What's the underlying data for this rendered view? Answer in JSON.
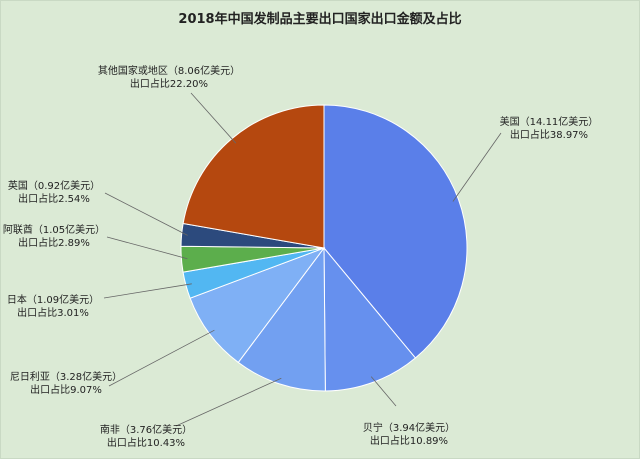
{
  "chart_data": {
    "type": "pie",
    "title": "2018年中国发制品主要出口国家出口金额及占比",
    "slices": [
      {
        "key": "us",
        "name": "美国",
        "value": 14.11,
        "percent": 38.97,
        "color": "#5a7fe9",
        "label_line1": "美国（14.11亿美元）",
        "label_line2": "出口占比38.97%"
      },
      {
        "key": "benin",
        "name": "贝宁",
        "value": 3.94,
        "percent": 10.89,
        "color": "#6690ee",
        "label_line1": "贝宁（3.94亿美元）",
        "label_line2": "出口占比10.89%"
      },
      {
        "key": "south-africa",
        "name": "南非",
        "value": 3.76,
        "percent": 10.43,
        "color": "#72a0f1",
        "label_line1": "南非（3.76亿美元）",
        "label_line2": "出口占比10.43%"
      },
      {
        "key": "nigeria",
        "name": "尼日利亚",
        "value": 3.28,
        "percent": 9.07,
        "color": "#7fb0f5",
        "label_line1": "尼日利亚（3.28亿美元）",
        "label_line2": "出口占比9.07%"
      },
      {
        "key": "japan",
        "name": "日本",
        "value": 1.09,
        "percent": 3.01,
        "color": "#52b7f2",
        "label_line1": "日本（1.09亿美元）",
        "label_line2": "出口占比3.01%"
      },
      {
        "key": "uae",
        "name": "阿联酋",
        "value": 1.05,
        "percent": 2.89,
        "color": "#5cae4c",
        "label_line1": "阿联酋（1.05亿美元）",
        "label_line2": "出口占比2.89%"
      },
      {
        "key": "uk",
        "name": "英国",
        "value": 0.92,
        "percent": 2.54,
        "color": "#2c4a7d",
        "label_line1": "英国（0.92亿美元）",
        "label_line2": "出口占比2.54%"
      },
      {
        "key": "others",
        "name": "其他国家或地区",
        "value": 8.06,
        "percent": 22.2,
        "color": "#b5480f",
        "label_line1": "其他国家或地区（8.06亿美元）",
        "label_line2": "出口占比22.20%"
      }
    ]
  }
}
